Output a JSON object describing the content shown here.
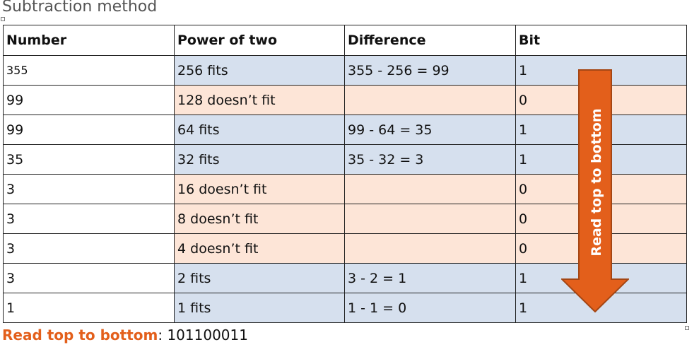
{
  "title": "Subtraction method",
  "table": {
    "headers": [
      "Number",
      "Power of two",
      "Difference",
      "Bit"
    ],
    "rows": [
      {
        "number": "355",
        "power": "256 fits",
        "difference": "355 - 256 = 99",
        "bit": "1",
        "status": "fit"
      },
      {
        "number": "99",
        "power": "128 doesn’t fit",
        "difference": "",
        "bit": "0",
        "status": "nofit"
      },
      {
        "number": "99",
        "power": "64 fits",
        "difference": "99 - 64 = 35",
        "bit": "1",
        "status": "fit"
      },
      {
        "number": "35",
        "power": "32 fits",
        "difference": "35 - 32 = 3",
        "bit": "1",
        "status": "fit"
      },
      {
        "number": "3",
        "power": "16 doesn’t fit",
        "difference": "",
        "bit": "0",
        "status": "nofit"
      },
      {
        "number": "3",
        "power": "8 doesn’t fit",
        "difference": "",
        "bit": "0",
        "status": "nofit"
      },
      {
        "number": "3",
        "power": "4 doesn’t fit",
        "difference": "",
        "bit": "0",
        "status": "nofit"
      },
      {
        "number": "3",
        "power": "2 fits",
        "difference": "3 - 2 = 1",
        "bit": "1",
        "status": "fit"
      },
      {
        "number": "1",
        "power": "1 fits",
        "difference": "1 - 1 = 0",
        "bit": "1",
        "status": "fit"
      }
    ]
  },
  "arrow": {
    "label": "Read top to bottom",
    "direction": "down",
    "fill_color": "#e35f1b",
    "stroke_color": "#a44614",
    "icon": "arrow-down-icon"
  },
  "footer": {
    "highlight": "Read top to bottom",
    "separator": ": ",
    "result": "101100011"
  },
  "colors": {
    "fit_row": "#d6e0ee",
    "nofit_row": "#fde5d7",
    "accent": "#e35f1b"
  }
}
